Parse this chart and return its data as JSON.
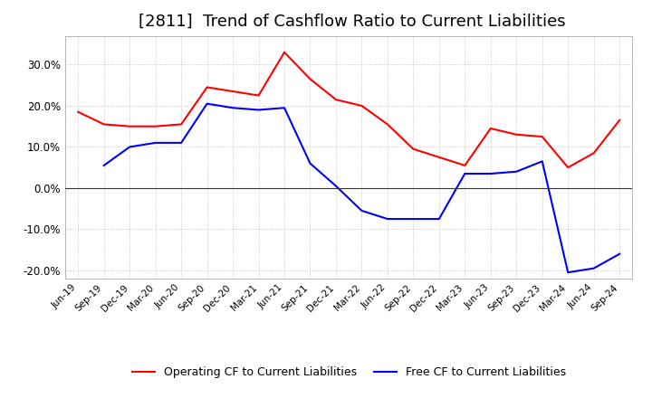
{
  "title": "[2811]  Trend of Cashflow Ratio to Current Liabilities",
  "title_fontsize": 13,
  "x_labels": [
    "Jun-19",
    "Sep-19",
    "Dec-19",
    "Mar-20",
    "Jun-20",
    "Sep-20",
    "Dec-20",
    "Mar-21",
    "Jun-21",
    "Sep-21",
    "Dec-21",
    "Mar-22",
    "Jun-22",
    "Sep-22",
    "Dec-22",
    "Mar-23",
    "Jun-23",
    "Sep-23",
    "Dec-23",
    "Mar-24",
    "Jun-24",
    "Sep-24"
  ],
  "operating_cf": [
    0.185,
    0.155,
    0.15,
    0.15,
    0.155,
    0.245,
    0.235,
    0.225,
    0.33,
    0.265,
    0.215,
    0.2,
    0.155,
    0.095,
    0.075,
    0.055,
    0.145,
    0.13,
    0.125,
    0.05,
    0.085,
    0.165
  ],
  "free_cf": [
    null,
    0.055,
    0.1,
    0.11,
    0.11,
    0.205,
    0.195,
    0.19,
    0.195,
    0.06,
    0.005,
    -0.055,
    -0.075,
    -0.075,
    -0.075,
    0.035,
    0.035,
    0.04,
    0.065,
    -0.205,
    -0.195,
    -0.16
  ],
  "operating_color": "#ff0000",
  "free_color": "#0000ff",
  "ylim": [
    -0.22,
    0.37
  ],
  "yticks": [
    -0.2,
    -0.1,
    0.0,
    0.1,
    0.2,
    0.3
  ],
  "background_color": "#ffffff",
  "grid_color": "#aaaaaa",
  "legend_labels": [
    "Operating CF to Current Liabilities",
    "Free CF to Current Liabilities"
  ]
}
